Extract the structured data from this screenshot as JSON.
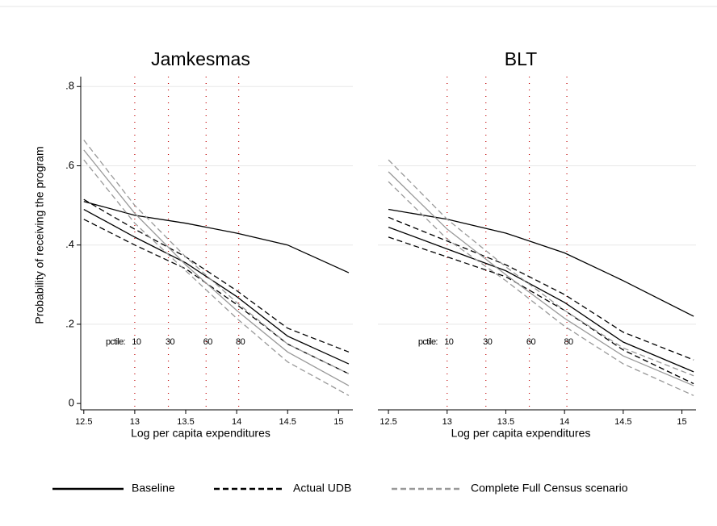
{
  "chart_data": [
    {
      "type": "line",
      "title": "Jamkesmas",
      "x_label": "Log per capita expenditures",
      "y_label": "Probability of receiving the program",
      "x": [
        12.5,
        13,
        13.5,
        14,
        14.5,
        15.1
      ],
      "xlim": [
        12.47,
        15.14
      ],
      "xticks": [
        12.5,
        13,
        13.5,
        14,
        14.5,
        15
      ],
      "ylim": [
        -0.016,
        0.825
      ],
      "yticks": [
        {
          "value": 0,
          "label": "0"
        },
        {
          "value": 0.2,
          "label": ".2"
        },
        {
          "value": 0.4,
          "label": ".4"
        },
        {
          "value": 0.6,
          "label": ".6"
        },
        {
          "value": 0.8,
          "label": ".8"
        }
      ],
      "grid": true,
      "show_y_axis": true,
      "percentiles": {
        "label": "pctile:",
        "x": [
          13.0,
          13.33,
          13.7,
          14.02
        ],
        "labels": [
          "10",
          "30",
          "60",
          "80"
        ],
        "label_y": 0.155,
        "color": "#c00000"
      },
      "series": [
        {
          "name": "Baseline",
          "color": "#000000",
          "style": "solid",
          "values": [
            0.51,
            0.475,
            0.455,
            0.43,
            0.4,
            0.33
          ]
        },
        {
          "name": "Actual UDB",
          "color": "#000000",
          "style": "solid",
          "band_style": "dashed",
          "values": [
            0.49,
            0.42,
            0.355,
            0.27,
            0.17,
            0.1
          ],
          "lower": [
            0.465,
            0.4,
            0.34,
            0.25,
            0.15,
            0.075
          ],
          "upper": [
            0.515,
            0.44,
            0.37,
            0.285,
            0.19,
            0.13
          ]
        },
        {
          "name": "Complete Full Census scenario",
          "color": "#999999",
          "style": "solid",
          "band_style": "dashed",
          "values": [
            0.64,
            0.48,
            0.35,
            0.235,
            0.13,
            0.045
          ],
          "lower": [
            0.615,
            0.455,
            0.335,
            0.215,
            0.105,
            0.02
          ],
          "upper": [
            0.665,
            0.5,
            0.37,
            0.255,
            0.15,
            0.075
          ]
        }
      ]
    },
    {
      "type": "line",
      "title": "BLT",
      "x_label": "Log per capita expenditures",
      "x": [
        12.5,
        13,
        13.5,
        14,
        14.5,
        15.1
      ],
      "xlim": [
        12.41,
        15.12
      ],
      "xticks": [
        12.5,
        13,
        13.5,
        14,
        14.5,
        15
      ],
      "ylim": [
        -0.016,
        0.825
      ],
      "yticks": [
        0.2,
        0.4,
        0.6
      ],
      "grid": true,
      "show_y_axis": false,
      "percentiles": {
        "label": "pctile:",
        "x": [
          13.0,
          13.33,
          13.7,
          14.02
        ],
        "labels": [
          "10",
          "30",
          "60",
          "80"
        ],
        "label_y": 0.155,
        "color": "#c00000"
      },
      "series": [
        {
          "color": "#000000",
          "style": "solid",
          "values": [
            0.49,
            0.465,
            0.43,
            0.38,
            0.31,
            0.22
          ]
        },
        {
          "color": "#000000",
          "style": "solid",
          "band_style": "dashed",
          "values": [
            0.445,
            0.39,
            0.335,
            0.255,
            0.155,
            0.08
          ],
          "lower": [
            0.42,
            0.37,
            0.32,
            0.235,
            0.135,
            0.05
          ],
          "upper": [
            0.47,
            0.41,
            0.35,
            0.275,
            0.18,
            0.11
          ]
        },
        {
          "color": "#999999",
          "style": "solid",
          "band_style": "dashed",
          "values": [
            0.585,
            0.44,
            0.325,
            0.215,
            0.12,
            0.045
          ],
          "lower": [
            0.56,
            0.415,
            0.31,
            0.195,
            0.1,
            0.02
          ],
          "upper": [
            0.615,
            0.465,
            0.345,
            0.235,
            0.14,
            0.07
          ]
        }
      ]
    }
  ]
}
